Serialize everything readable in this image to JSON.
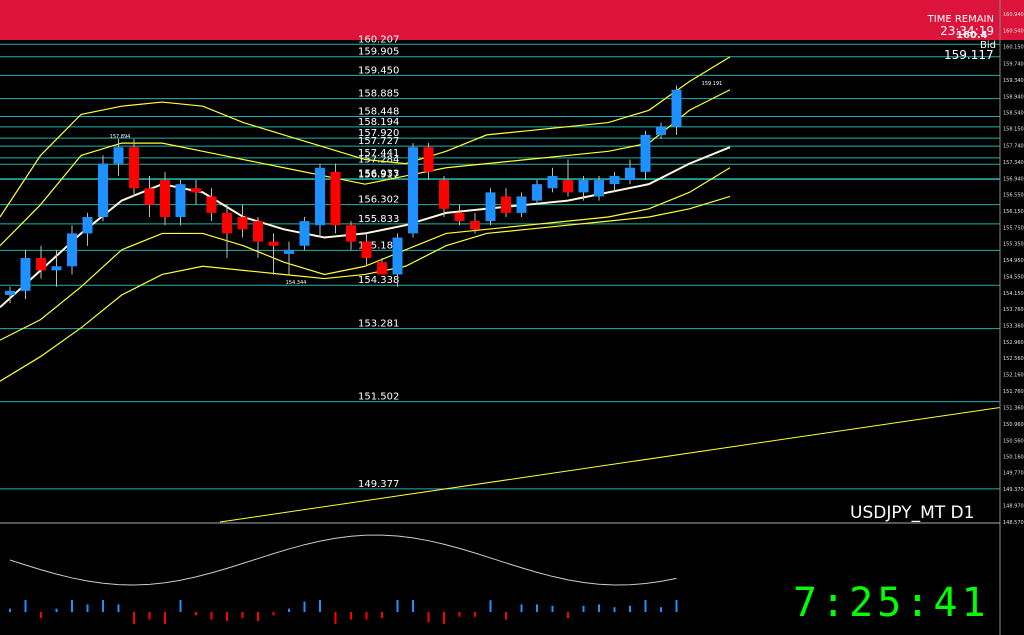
{
  "header": {
    "time_remain_label": "TIME REMAIN",
    "time_remain_value": "23:34:19",
    "big_price": "160.4",
    "bid_label": "Bid",
    "bid_value": "159.117"
  },
  "symbol": "USDJPY_MT D1",
  "clock": "7:25:41",
  "colors": {
    "banner": "#dc143c",
    "bull": "#1e90ff",
    "bear": "#ff0000",
    "level_line": "#20b2aa",
    "band": "#ffff33",
    "ma": "#fff8dc",
    "clock": "#00ff00"
  },
  "chart_data": {
    "type": "candlestick",
    "symbol": "USDJPY_MT",
    "timeframe": "D1",
    "ylim": [
      148.57,
      161.14
    ],
    "y_ticks": [
      "160.940",
      "160.540",
      "160.150",
      "159.740",
      "159.340",
      "158.940",
      "158.540",
      "158.150",
      "157.740",
      "157.340",
      "156.940",
      "156.550",
      "156.150",
      "155.750",
      "155.350",
      "154.950",
      "154.550",
      "154.150",
      "153.760",
      "153.360",
      "152.960",
      "152.560",
      "152.160",
      "151.760",
      "151.360",
      "150.960",
      "150.560",
      "150.160",
      "149.770",
      "149.370",
      "148.970",
      "148.570"
    ],
    "levels": [
      {
        "value": 160.207,
        "label": "160.207"
      },
      {
        "value": 159.905,
        "label": "159.905"
      },
      {
        "value": 159.45,
        "label": "159.450"
      },
      {
        "value": 158.885,
        "label": "158.885"
      },
      {
        "value": 158.448,
        "label": "158.448"
      },
      {
        "value": 158.194,
        "label": "158.194"
      },
      {
        "value": 157.92,
        "label": "157.920"
      },
      {
        "value": 157.727,
        "label": "157.727"
      },
      {
        "value": 157.441,
        "label": "157.441"
      },
      {
        "value": 157.284,
        "label": "157.284"
      },
      {
        "value": 156.933,
        "label": "156.933"
      },
      {
        "value": 156.917,
        "label": "156.917"
      },
      {
        "value": 156.302,
        "label": "156.302"
      },
      {
        "value": 155.833,
        "label": "155.833"
      },
      {
        "value": 155.187,
        "label": "155.187"
      },
      {
        "value": 154.338,
        "label": "154.338"
      },
      {
        "value": 153.281,
        "label": "153.281"
      },
      {
        "value": 151.502,
        "label": "151.502"
      },
      {
        "value": 149.377,
        "label": "149.377"
      }
    ],
    "annotations": [
      {
        "label": "157.894",
        "value": 157.894
      },
      {
        "label": "154.344",
        "value": 154.344
      },
      {
        "label": "159.191",
        "value": 159.191
      }
    ],
    "candles": [
      {
        "o": 154.1,
        "h": 154.3,
        "l": 153.9,
        "c": 154.2
      },
      {
        "o": 154.2,
        "h": 155.2,
        "l": 154.0,
        "c": 155.0
      },
      {
        "o": 155.0,
        "h": 155.3,
        "l": 154.5,
        "c": 154.7
      },
      {
        "o": 154.7,
        "h": 155.2,
        "l": 154.3,
        "c": 154.8
      },
      {
        "o": 154.8,
        "h": 155.8,
        "l": 154.6,
        "c": 155.6
      },
      {
        "o": 155.6,
        "h": 156.1,
        "l": 155.3,
        "c": 156.0
      },
      {
        "o": 156.0,
        "h": 157.5,
        "l": 155.9,
        "c": 157.3
      },
      {
        "o": 157.3,
        "h": 157.9,
        "l": 157.0,
        "c": 157.7
      },
      {
        "o": 157.7,
        "h": 157.9,
        "l": 156.5,
        "c": 156.7
      },
      {
        "o": 156.7,
        "h": 157.0,
        "l": 156.0,
        "c": 156.3
      },
      {
        "o": 156.9,
        "h": 157.1,
        "l": 155.8,
        "c": 156.0
      },
      {
        "o": 156.0,
        "h": 156.9,
        "l": 155.8,
        "c": 156.8
      },
      {
        "o": 156.7,
        "h": 156.9,
        "l": 156.3,
        "c": 156.6
      },
      {
        "o": 156.5,
        "h": 156.7,
        "l": 155.9,
        "c": 156.1
      },
      {
        "o": 156.1,
        "h": 156.3,
        "l": 155.0,
        "c": 155.6
      },
      {
        "o": 156.0,
        "h": 156.3,
        "l": 155.5,
        "c": 155.7
      },
      {
        "o": 155.9,
        "h": 156.0,
        "l": 155.0,
        "c": 155.4
      },
      {
        "o": 155.4,
        "h": 155.6,
        "l": 154.6,
        "c": 155.3
      },
      {
        "o": 155.1,
        "h": 155.4,
        "l": 154.6,
        "c": 155.2
      },
      {
        "o": 155.3,
        "h": 156.0,
        "l": 155.2,
        "c": 155.9
      },
      {
        "o": 155.8,
        "h": 157.3,
        "l": 155.5,
        "c": 157.2
      },
      {
        "o": 157.1,
        "h": 157.3,
        "l": 155.6,
        "c": 155.8
      },
      {
        "o": 155.8,
        "h": 155.9,
        "l": 155.2,
        "c": 155.4
      },
      {
        "o": 155.4,
        "h": 155.6,
        "l": 154.8,
        "c": 155.0
      },
      {
        "o": 154.9,
        "h": 155.0,
        "l": 154.6,
        "c": 154.6
      },
      {
        "o": 154.6,
        "h": 155.6,
        "l": 154.3,
        "c": 155.5
      },
      {
        "o": 155.6,
        "h": 157.8,
        "l": 155.5,
        "c": 157.7
      },
      {
        "o": 157.7,
        "h": 157.8,
        "l": 156.9,
        "c": 157.1
      },
      {
        "o": 156.9,
        "h": 157.0,
        "l": 156.0,
        "c": 156.2
      },
      {
        "o": 156.1,
        "h": 156.3,
        "l": 155.8,
        "c": 155.9
      },
      {
        "o": 155.9,
        "h": 156.1,
        "l": 155.6,
        "c": 155.7
      },
      {
        "o": 155.9,
        "h": 156.7,
        "l": 155.8,
        "c": 156.6
      },
      {
        "o": 156.5,
        "h": 156.7,
        "l": 156.0,
        "c": 156.1
      },
      {
        "o": 156.1,
        "h": 156.6,
        "l": 156.0,
        "c": 156.5
      },
      {
        "o": 156.4,
        "h": 156.9,
        "l": 156.3,
        "c": 156.8
      },
      {
        "o": 156.7,
        "h": 157.2,
        "l": 156.6,
        "c": 157.0
      },
      {
        "o": 156.9,
        "h": 157.4,
        "l": 156.5,
        "c": 156.6
      },
      {
        "o": 156.6,
        "h": 157.0,
        "l": 156.4,
        "c": 156.9
      },
      {
        "o": 156.5,
        "h": 157.0,
        "l": 156.4,
        "c": 156.9
      },
      {
        "o": 156.8,
        "h": 157.1,
        "l": 156.6,
        "c": 157.0
      },
      {
        "o": 156.9,
        "h": 157.4,
        "l": 156.8,
        "c": 157.2
      },
      {
        "o": 157.1,
        "h": 158.1,
        "l": 156.9,
        "c": 158.0
      },
      {
        "o": 158.0,
        "h": 158.3,
        "l": 157.9,
        "c": 158.2
      },
      {
        "o": 158.2,
        "h": 159.2,
        "l": 158.0,
        "c": 159.1
      }
    ],
    "bands": {
      "upper_2": [
        156.0,
        157.5,
        158.5,
        158.7,
        158.8,
        158.7,
        158.3,
        158.0,
        157.7,
        157.4,
        157.3,
        157.6,
        158.0,
        158.1,
        158.2,
        158.3,
        158.6,
        159.3,
        159.9
      ],
      "upper_1": [
        155.3,
        156.3,
        157.5,
        157.8,
        157.8,
        157.6,
        157.4,
        157.2,
        157.0,
        156.8,
        157.0,
        157.2,
        157.3,
        157.4,
        157.5,
        157.6,
        157.8,
        158.6,
        159.1
      ],
      "middle": [
        153.8,
        154.7,
        155.6,
        156.4,
        156.8,
        156.6,
        156.0,
        155.7,
        155.5,
        155.6,
        155.8,
        156.1,
        156.2,
        156.3,
        156.4,
        156.6,
        156.8,
        157.3,
        157.7
      ],
      "lower_1": [
        153.0,
        153.5,
        154.3,
        155.2,
        155.6,
        155.6,
        155.3,
        154.9,
        154.6,
        154.8,
        155.2,
        155.6,
        155.7,
        155.8,
        155.9,
        156.0,
        156.2,
        156.6,
        157.2
      ],
      "lower_2": [
        152.0,
        152.6,
        153.3,
        154.1,
        154.6,
        154.8,
        154.7,
        154.6,
        154.5,
        154.6,
        154.8,
        155.3,
        155.6,
        155.7,
        155.8,
        155.9,
        156.0,
        156.2,
        156.5
      ]
    },
    "trendline": {
      "from": 148.57,
      "to": 151.36
    }
  }
}
